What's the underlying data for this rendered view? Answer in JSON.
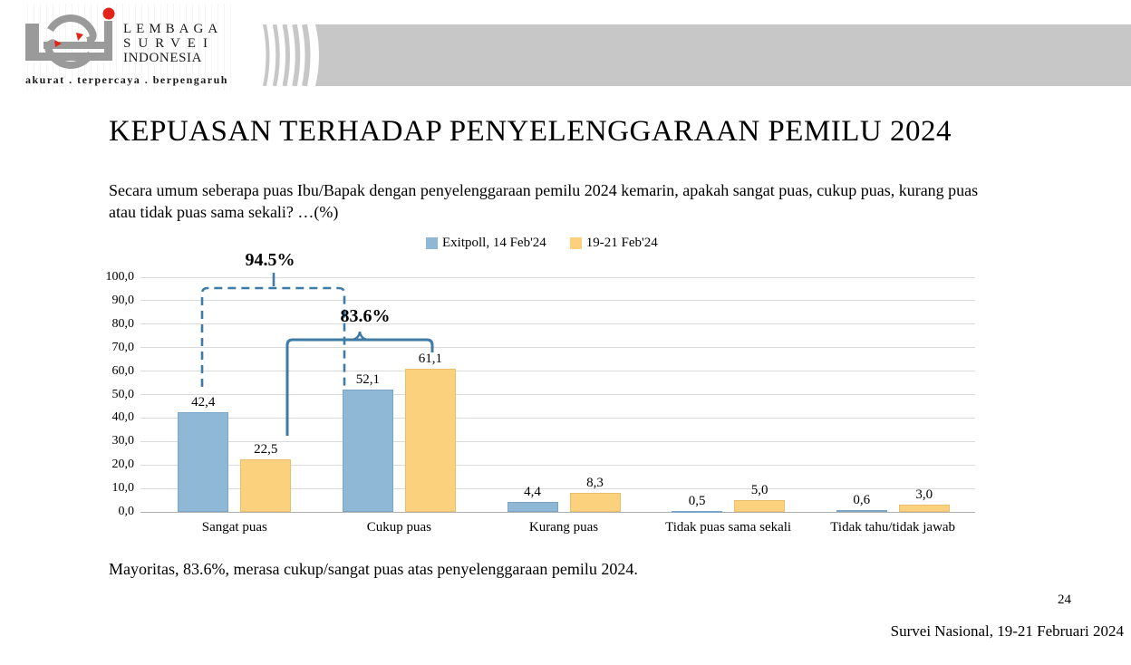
{
  "header": {
    "logo": {
      "acronym": "LSI",
      "org_name_lines": [
        "LEMBAGA",
        "SURVEI",
        "INDONESIA"
      ],
      "tagline": "akurat . terpercaya . berpengaruh",
      "gray": "#9a9a9a",
      "red": "#e32219"
    },
    "banner_color": "#c7c7c7"
  },
  "slide": {
    "title": "KEPUASAN TERHADAP PENYELENGGARAAN PEMILU 2024",
    "question": "Secara umum seberapa puas Ibu/Bapak dengan penyelenggaraan pemilu 2024 kemarin, apakah sangat puas, cukup puas, kurang puas atau tidak puas sama sekali? …(%)",
    "conclusion": "Mayoritas, 83.6%, merasa cukup/sangat puas atas penyelenggaraan pemilu 2024.",
    "page_number": "24",
    "footer_note": "Survei Nasional, 19-21 Februari 2024"
  },
  "chart_data": {
    "type": "bar",
    "categories": [
      "Sangat puas",
      "Cukup puas",
      "Kurang puas",
      "Tidak puas sama sekali",
      "Tidak tahu/tidak jawab"
    ],
    "series": [
      {
        "name": "Exitpoll, 14 Feb'24",
        "color": "#8fb7d6",
        "border": "#7aa5c6",
        "values": [
          42.4,
          52.1,
          4.4,
          0.5,
          0.6
        ]
      },
      {
        "name": "19-21 Feb'24",
        "color": "#fcd17e",
        "border": "#e9bf6b",
        "values": [
          22.5,
          61.1,
          8.3,
          5.0,
          3.0
        ]
      }
    ],
    "ylim": [
      0,
      100
    ],
    "ytick_step": 10,
    "ytick_labels": [
      "0,0",
      "10,0",
      "20,0",
      "30,0",
      "40,0",
      "50,0",
      "60,0",
      "70,0",
      "80,0",
      "90,0",
      "100,0"
    ],
    "decimal_separator_bar_labels": ",",
    "grid": true,
    "legend_position": "top-center",
    "annotation_color": "#3e7ba6",
    "annotations": [
      {
        "label": "94.5%",
        "style": "dashed-bracket",
        "connects_series": "Exitpoll, 14 Feb'24",
        "connects_categories": [
          "Sangat puas",
          "Cukup puas"
        ]
      },
      {
        "label": "83.6%",
        "style": "solid-bracket",
        "connects_series": "19-21 Feb'24",
        "connects_categories": [
          "Sangat puas",
          "Cukup puas"
        ]
      }
    ]
  }
}
